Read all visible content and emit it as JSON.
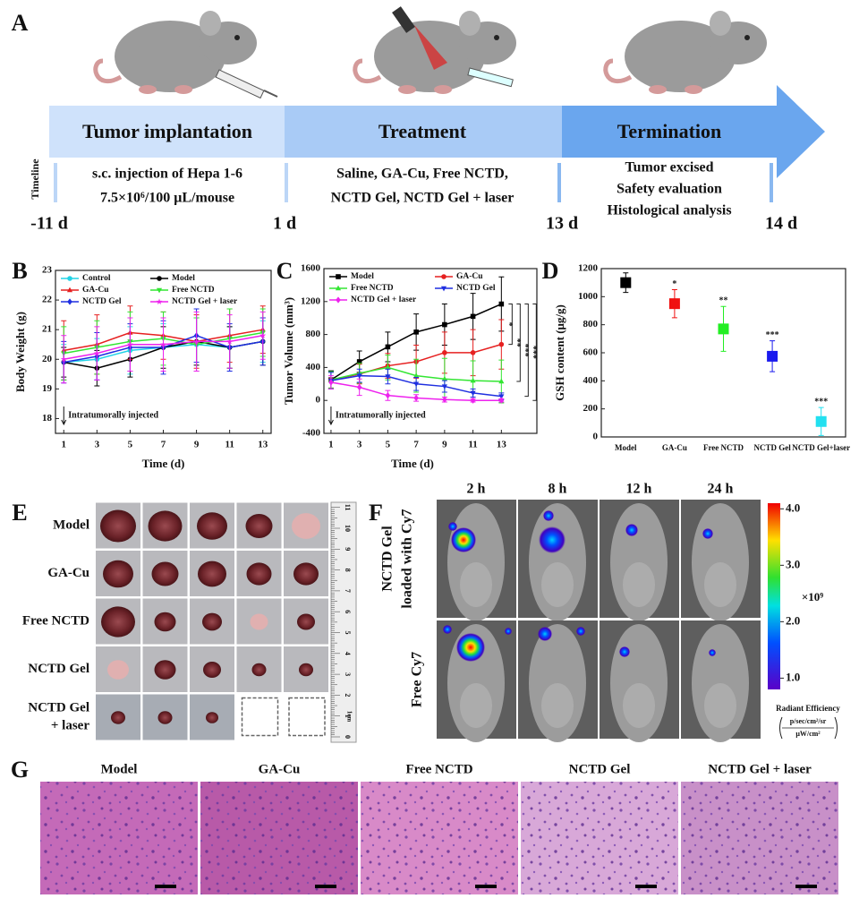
{
  "panel_labels": [
    "A",
    "B",
    "C",
    "D",
    "E",
    "F",
    "G"
  ],
  "timeline": {
    "axis_label": "Timeline",
    "stages": [
      "Tumor implantation",
      "Treatment",
      "Termination"
    ],
    "descriptions": [
      [
        "s.c. injection of Hepa 1-6",
        "7.5×10⁶/100 μL/mouse"
      ],
      [
        "Saline, GA-Cu, Free NCTD,",
        "NCTD Gel, NCTD Gel + laser"
      ],
      [
        "Tumor excised",
        "Safety evaluation",
        "Histological analysis"
      ]
    ],
    "days": [
      "-11 d",
      "1 d",
      "13 d",
      "14 d"
    ]
  },
  "chart_data": [
    {
      "type": "line",
      "xlabel": "Time (d)",
      "ylabel": "Body Weight (g)",
      "x": [
        1,
        3,
        5,
        7,
        9,
        11,
        13
      ],
      "xlim": [
        0.5,
        13.5
      ],
      "xticks": [
        1,
        3,
        5,
        7,
        9,
        11,
        13
      ],
      "ylim": [
        17.5,
        23
      ],
      "yticks": [
        18,
        19,
        20,
        21,
        22,
        23
      ],
      "legend": "top-left",
      "annotation": "Intratumorally injected",
      "series": [
        {
          "name": "Control",
          "color": "#22d3e6",
          "marker": "circle",
          "values": [
            19.9,
            20.0,
            20.3,
            20.4,
            20.5,
            20.4,
            20.6
          ],
          "errors": [
            0.6,
            0.7,
            0.8,
            0.8,
            0.9,
            0.7,
            0.7
          ]
        },
        {
          "name": "Model",
          "color": "#000000",
          "marker": "circle",
          "values": [
            19.9,
            19.7,
            20.0,
            20.4,
            20.6,
            20.4,
            20.6
          ],
          "errors": [
            0.5,
            0.6,
            0.6,
            0.7,
            0.8,
            0.7,
            0.8
          ]
        },
        {
          "name": "GA-Cu",
          "color": "#e62020",
          "marker": "triangle",
          "values": [
            20.3,
            20.5,
            20.9,
            20.8,
            20.6,
            20.8,
            21.0
          ],
          "errors": [
            1.0,
            1.0,
            0.9,
            0.8,
            0.9,
            0.9,
            0.8
          ]
        },
        {
          "name": "Free NCTD",
          "color": "#33e633",
          "marker": "triangle-down",
          "values": [
            20.2,
            20.4,
            20.6,
            20.7,
            20.5,
            20.7,
            20.9
          ],
          "errors": [
            0.9,
            0.9,
            1.0,
            0.9,
            0.9,
            1.0,
            0.8
          ]
        },
        {
          "name": "NCTD Gel",
          "color": "#1f2fe0",
          "marker": "diamond",
          "values": [
            19.9,
            20.1,
            20.4,
            20.4,
            20.8,
            20.4,
            20.6
          ],
          "errors": [
            0.7,
            0.8,
            0.8,
            0.9,
            0.9,
            0.8,
            0.8
          ]
        },
        {
          "name": "NCTD Gel + laser",
          "color": "#ee22ee",
          "marker": "star",
          "values": [
            20.0,
            20.2,
            20.5,
            20.5,
            20.6,
            20.6,
            20.8
          ],
          "errors": [
            0.8,
            0.9,
            0.9,
            0.9,
            1.0,
            0.9,
            0.8
          ]
        }
      ]
    },
    {
      "type": "line",
      "xlabel": "Time (d)",
      "ylabel": "Tumor Volume (mm³)",
      "x": [
        1,
        3,
        5,
        7,
        9,
        11,
        13
      ],
      "xlim": [
        0.5,
        15.5
      ],
      "xticks": [
        1,
        3,
        5,
        7,
        9,
        11,
        13
      ],
      "ylim": [
        -400,
        1600
      ],
      "yticks": [
        -400,
        0,
        400,
        800,
        1200,
        1600
      ],
      "legend": "top-left",
      "annotation": "Intratumorally injected",
      "series": [
        {
          "name": "Model",
          "color": "#000000",
          "marker": "square",
          "values": [
            250,
            470,
            650,
            830,
            920,
            1020,
            1170
          ],
          "errors": [
            110,
            130,
            180,
            220,
            250,
            280,
            330
          ]
        },
        {
          "name": "GA-Cu",
          "color": "#e62020",
          "marker": "circle",
          "values": [
            250,
            320,
            420,
            470,
            580,
            580,
            680
          ],
          "errors": [
            100,
            120,
            150,
            200,
            250,
            280,
            300
          ]
        },
        {
          "name": "Free NCTD",
          "color": "#33e633",
          "marker": "triangle",
          "values": [
            250,
            330,
            400,
            300,
            260,
            240,
            230
          ],
          "errors": [
            100,
            120,
            150,
            200,
            250,
            240,
            260
          ]
        },
        {
          "name": "NCTD Gel",
          "color": "#1f2fe0",
          "marker": "triangle-down",
          "values": [
            240,
            300,
            290,
            200,
            170,
            90,
            50
          ],
          "errors": [
            100,
            80,
            90,
            80,
            70,
            50,
            40
          ]
        },
        {
          "name": "NCTD Gel + laser",
          "color": "#ee22ee",
          "marker": "diamond",
          "values": [
            220,
            160,
            60,
            30,
            10,
            0,
            0
          ],
          "errors": [
            80,
            100,
            60,
            40,
            30,
            20,
            20
          ]
        }
      ],
      "significance": [
        {
          "label": "*",
          "between": [
            0,
            1
          ]
        },
        {
          "label": "**",
          "between": [
            0,
            2
          ]
        },
        {
          "label": "***",
          "between": [
            0,
            3
          ]
        },
        {
          "label": "***",
          "between": [
            0,
            4
          ]
        }
      ]
    },
    {
      "type": "point",
      "ylabel": "GSH content (μg/g)",
      "categories": [
        "Model",
        "GA-Cu",
        "Free NCTD",
        "NCTD Gel",
        "NCTD Gel+laser"
      ],
      "values": [
        1100,
        950,
        770,
        575,
        110
      ],
      "errors": [
        70,
        100,
        160,
        110,
        100
      ],
      "colors": [
        "#000000",
        "#f01010",
        "#22ee22",
        "#1a1aee",
        "#22e0f0"
      ],
      "ylim": [
        0,
        1200
      ],
      "yticks": [
        0,
        200,
        400,
        600,
        800,
        1000,
        1200
      ],
      "significance": [
        null,
        "*",
        "**",
        "***",
        "***"
      ]
    }
  ],
  "tumor_photos": {
    "rows": [
      "Model",
      "GA-Cu",
      "Free NCTD",
      "NCTD Gel",
      [
        "NCTD Gel",
        "+ laser"
      ]
    ],
    "ruler_ticks": [
      "0",
      "1",
      "2",
      "3",
      "4",
      "5",
      "6",
      "7",
      "8",
      "9",
      "10",
      "11"
    ],
    "ruler_unit": "1cm"
  },
  "imaging": {
    "times": [
      "2 h",
      "8 h",
      "12 h",
      "24 h"
    ],
    "rows": [
      [
        "NCTD Gel",
        "loaded with Cy7"
      ],
      [
        "Free Cy7"
      ]
    ],
    "colorbar": {
      "ylim": [
        0.8,
        4.1
      ],
      "ticks": [
        {
          "value": 4,
          "label": "4.0"
        },
        {
          "value": 3,
          "label": "3.0"
        },
        {
          "value": 2,
          "label": "2.0"
        },
        {
          "value": 1,
          "label": "1.0"
        }
      ],
      "multiplier": "×10⁹",
      "label": "Radiant Efficiency",
      "unit_top": "p/sec/cm²/sr",
      "unit_bottom": "μW/cm²"
    }
  },
  "histology": {
    "groups": [
      "Model",
      "GA-Cu",
      "Free NCTD",
      "NCTD Gel",
      "NCTD Gel + laser"
    ]
  }
}
